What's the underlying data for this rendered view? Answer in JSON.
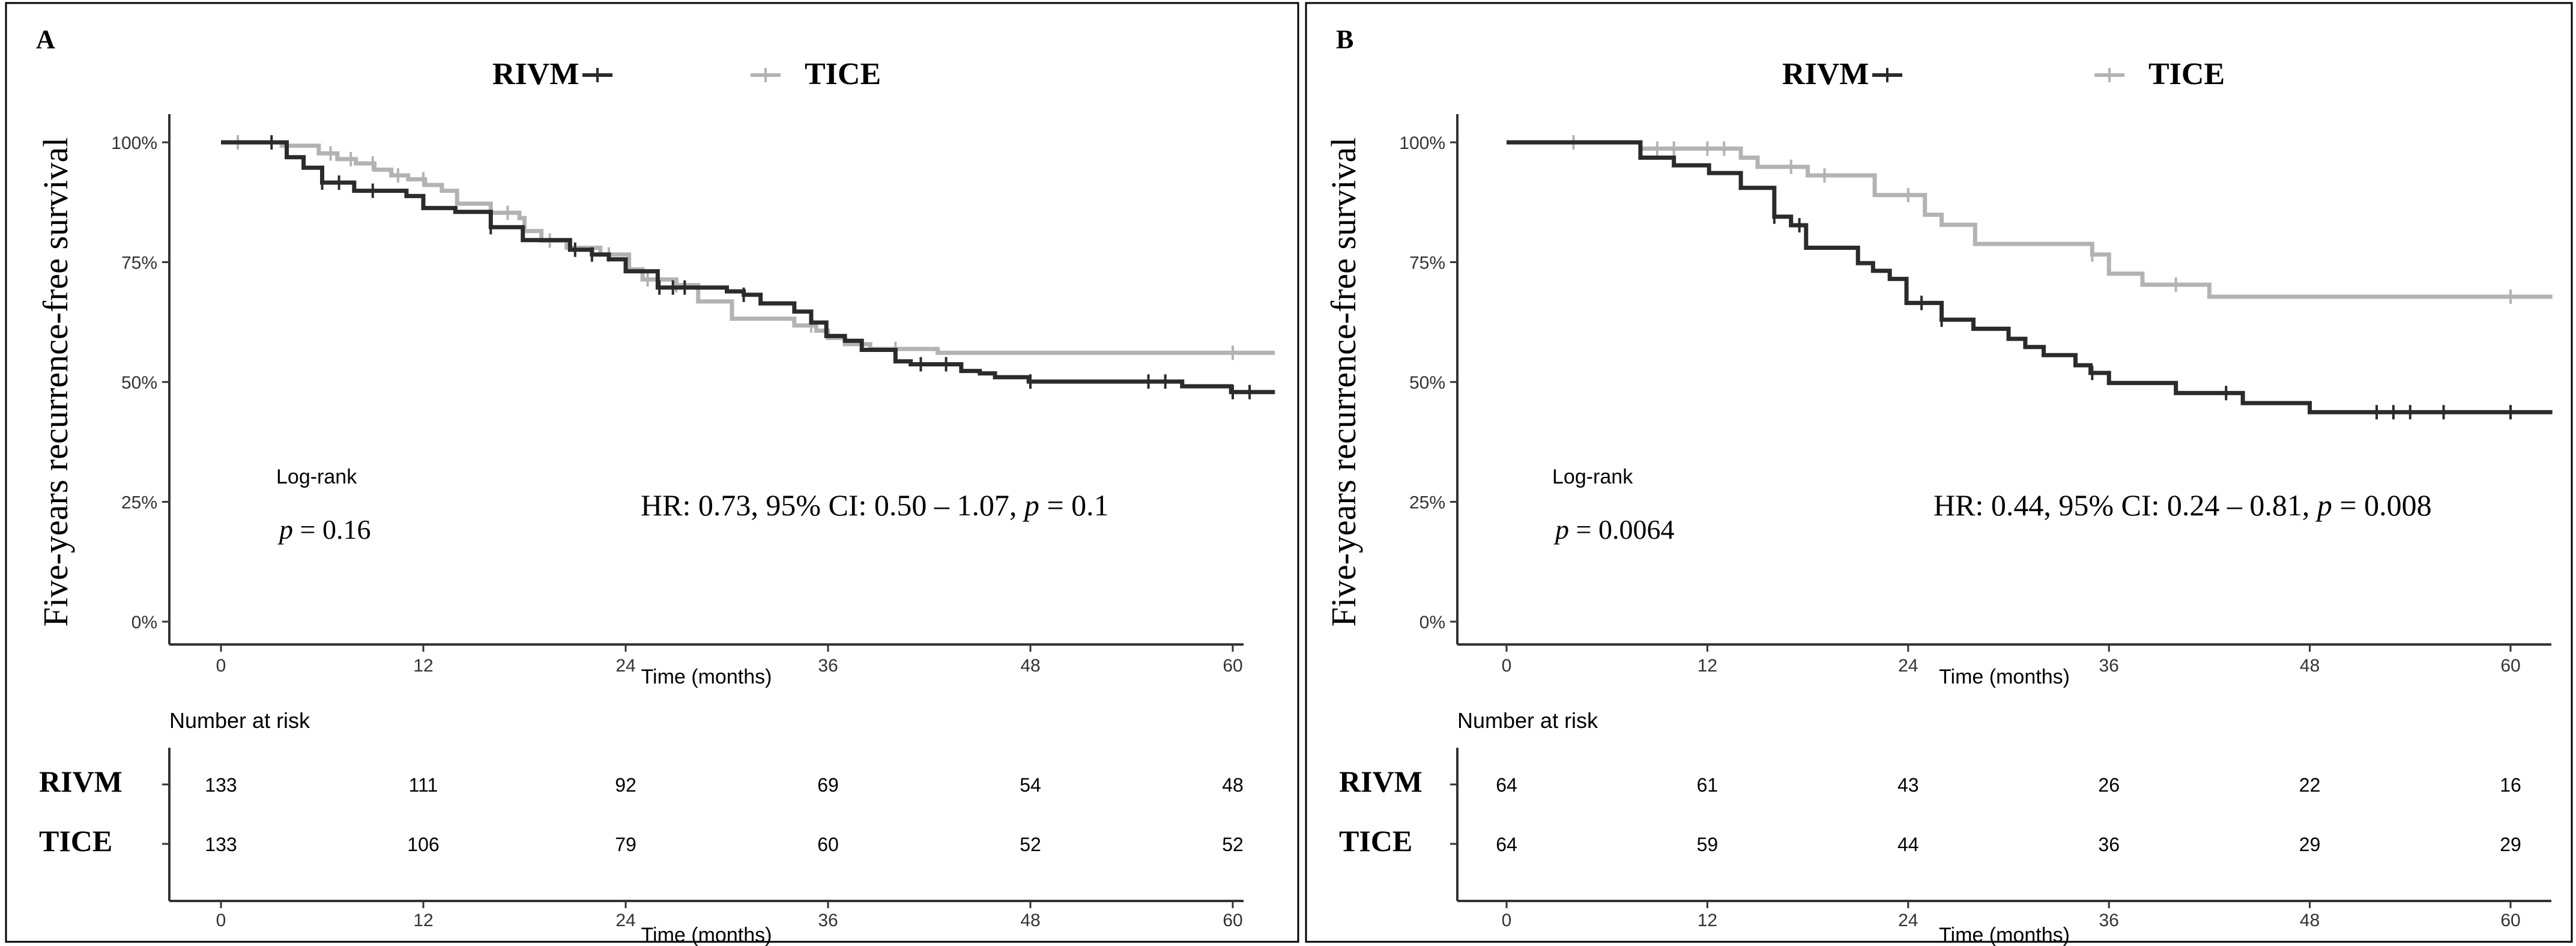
{
  "chart_data": [
    {
      "panel": "A",
      "type": "line",
      "subtype": "kaplan-meier",
      "ylabel": "Five-years recurrence-free survival",
      "xlabel": "Time (months)",
      "xticks": [
        0,
        12,
        24,
        36,
        48,
        60
      ],
      "yticks": [
        "0%",
        "25%",
        "50%",
        "75%",
        "100%"
      ],
      "xlim": [
        0,
        62.5
      ],
      "ylim": [
        0,
        100
      ],
      "legend": "top",
      "annotations": {
        "test": "Log-rank",
        "p_label": "p",
        "p_value": "= 0.16",
        "hr_text": "HR: 0.73, 95% CI: 0.50 – 1.07, ",
        "hr_p_label": "p",
        "hr_p_value": " = 0.1"
      },
      "series": [
        {
          "name": "RIVM",
          "color": "#2b2b2b",
          "steps": [
            [
              0,
              100
            ],
            [
              3.9,
              96.9
            ],
            [
              4.9,
              94.7
            ],
            [
              6,
              91.6
            ],
            [
              7.9,
              89.9
            ],
            [
              11,
              88.8
            ],
            [
              12,
              86.3
            ],
            [
              13.9,
              85.5
            ],
            [
              16,
              82.3
            ],
            [
              17.9,
              79.6
            ],
            [
              20.7,
              77.6
            ],
            [
              22,
              76.6
            ],
            [
              23,
              75.6
            ],
            [
              24,
              73.1
            ],
            [
              25.9,
              69.7
            ],
            [
              30,
              68.9
            ],
            [
              31,
              68.2
            ],
            [
              32,
              66.4
            ],
            [
              34,
              64.7
            ],
            [
              35,
              62.4
            ],
            [
              35.9,
              59.6
            ],
            [
              37,
              58.6
            ],
            [
              38,
              56.7
            ],
            [
              40,
              54.3
            ],
            [
              40.9,
              53.7
            ],
            [
              43.9,
              52.3
            ],
            [
              45,
              51.8
            ],
            [
              45.9,
              51
            ],
            [
              47.9,
              50.1
            ],
            [
              57,
              49.1
            ],
            [
              59.9,
              47.9
            ],
            [
              62.5,
              47.9
            ]
          ],
          "censors": [
            3,
            6,
            7,
            9,
            16,
            21,
            22,
            26,
            26.8,
            27.5,
            31,
            41.5,
            43,
            48,
            55,
            56,
            60,
            61
          ]
        },
        {
          "name": "TICE",
          "color": "#b3b3b3",
          "steps": [
            [
              0,
              100
            ],
            [
              3.6,
              99.3
            ],
            [
              5.8,
              97.7
            ],
            [
              6.9,
              96.5
            ],
            [
              8,
              95.6
            ],
            [
              9.1,
              94.3
            ],
            [
              10.1,
              93.1
            ],
            [
              11.1,
              92.3
            ],
            [
              12.1,
              91.1
            ],
            [
              13.1,
              89.9
            ],
            [
              14,
              87.2
            ],
            [
              16,
              85.3
            ],
            [
              17.7,
              84.2
            ],
            [
              18,
              81.5
            ],
            [
              19,
              79.5
            ],
            [
              20.5,
              78
            ],
            [
              22.5,
              76.6
            ],
            [
              24.2,
              73.5
            ],
            [
              25,
              71.4
            ],
            [
              27,
              70.2
            ],
            [
              28.3,
              66.8
            ],
            [
              30.3,
              63.2
            ],
            [
              34,
              61.8
            ],
            [
              35.3,
              60.7
            ],
            [
              36,
              59.2
            ],
            [
              37,
              57.9
            ],
            [
              38.5,
              56.9
            ],
            [
              42.5,
              56.1
            ],
            [
              62.5,
              56.1
            ]
          ],
          "censors": [
            1,
            6.5,
            7.7,
            9,
            10.5,
            12,
            17,
            19.5,
            23,
            25.3,
            27,
            35,
            40,
            60
          ]
        }
      ],
      "risk_table": {
        "title": "Number at risk",
        "times": [
          0,
          12,
          24,
          36,
          48,
          60
        ],
        "rows": [
          {
            "name": "RIVM",
            "values": [
              133,
              111,
              92,
              69,
              54,
              48
            ]
          },
          {
            "name": "TICE",
            "values": [
              133,
              106,
              79,
              60,
              52,
              52
            ]
          }
        ]
      }
    },
    {
      "panel": "B",
      "type": "line",
      "subtype": "kaplan-meier",
      "ylabel": "Five-years recurrence-free survival",
      "xlabel": "Time (months)",
      "xticks": [
        0,
        12,
        24,
        36,
        48,
        60
      ],
      "yticks": [
        "0%",
        "25%",
        "50%",
        "75%",
        "100%"
      ],
      "xlim": [
        0,
        62.5
      ],
      "ylim": [
        0,
        100
      ],
      "legend": "top",
      "annotations": {
        "test": "Log-rank",
        "p_label": "p",
        "p_value": "= 0.0064",
        "hr_text": "HR: 0.44, 95% CI: 0.24 – 0.81, ",
        "hr_p_label": "p",
        "hr_p_value": " = 0.008"
      },
      "series": [
        {
          "name": "RIVM",
          "color": "#2b2b2b",
          "steps": [
            [
              0,
              100
            ],
            [
              8,
              96.8
            ],
            [
              10,
              95.2
            ],
            [
              12.1,
              93.6
            ],
            [
              14,
              90.5
            ],
            [
              16,
              84.5
            ],
            [
              17,
              82.7
            ],
            [
              17.9,
              78
            ],
            [
              21,
              74.8
            ],
            [
              21.9,
              73.2
            ],
            [
              22.9,
              71.5
            ],
            [
              23.9,
              66.5
            ],
            [
              26,
              63
            ],
            [
              27.9,
              61.1
            ],
            [
              30,
              59
            ],
            [
              31,
              57.3
            ],
            [
              32.1,
              55.6
            ],
            [
              34,
              53.5
            ],
            [
              34.9,
              51.9
            ],
            [
              36,
              49.8
            ],
            [
              40,
              47.7
            ],
            [
              44,
              45.6
            ],
            [
              48,
              43.7
            ],
            [
              62.5,
              43.7
            ]
          ],
          "censors": [
            16,
            17.5,
            24.8,
            26,
            35,
            43,
            52,
            53,
            54,
            56,
            60
          ]
        },
        {
          "name": "TICE",
          "color": "#b3b3b3",
          "steps": [
            [
              0,
              100
            ],
            [
              8,
              98.7
            ],
            [
              14,
              96.8
            ],
            [
              15,
              94.9
            ],
            [
              18,
              93.1
            ],
            [
              22,
              89
            ],
            [
              25,
              84.9
            ],
            [
              26,
              82.8
            ],
            [
              28,
              78.8
            ],
            [
              35,
              76.6
            ],
            [
              36,
              72.6
            ],
            [
              38,
              70.3
            ],
            [
              42,
              67.8
            ],
            [
              62.5,
              67.8
            ]
          ],
          "censors": [
            4,
            9,
            10,
            12,
            13,
            17,
            19,
            24,
            35,
            40,
            60
          ]
        }
      ],
      "risk_table": {
        "title": "Number at risk",
        "times": [
          0,
          12,
          24,
          36,
          48,
          60
        ],
        "rows": [
          {
            "name": "RIVM",
            "values": [
              64,
              61,
              43,
              26,
              22,
              16
            ]
          },
          {
            "name": "TICE",
            "values": [
              64,
              59,
              44,
              36,
              29,
              29
            ]
          }
        ]
      }
    }
  ]
}
